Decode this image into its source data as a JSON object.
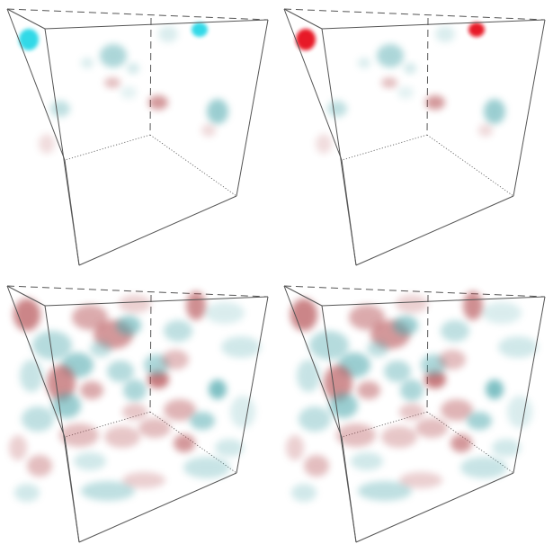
{
  "figure": {
    "panels": [
      {
        "id": "top-left",
        "field": "sparse",
        "strong_blob_color": "#27d7e6"
      },
      {
        "id": "top-right",
        "field": "sparse",
        "strong_blob_color": "#e60f1e"
      },
      {
        "id": "bottom-left",
        "field": "dense"
      },
      {
        "id": "bottom-right",
        "field": "dense"
      }
    ]
  },
  "colors": {
    "background": "#ffffff",
    "cube_edge": "#555555",
    "teal": "#4aa6ab",
    "red": "#b0454a",
    "cyan_strong": "#27d7e6",
    "red_strong": "#e60f1e"
  }
}
